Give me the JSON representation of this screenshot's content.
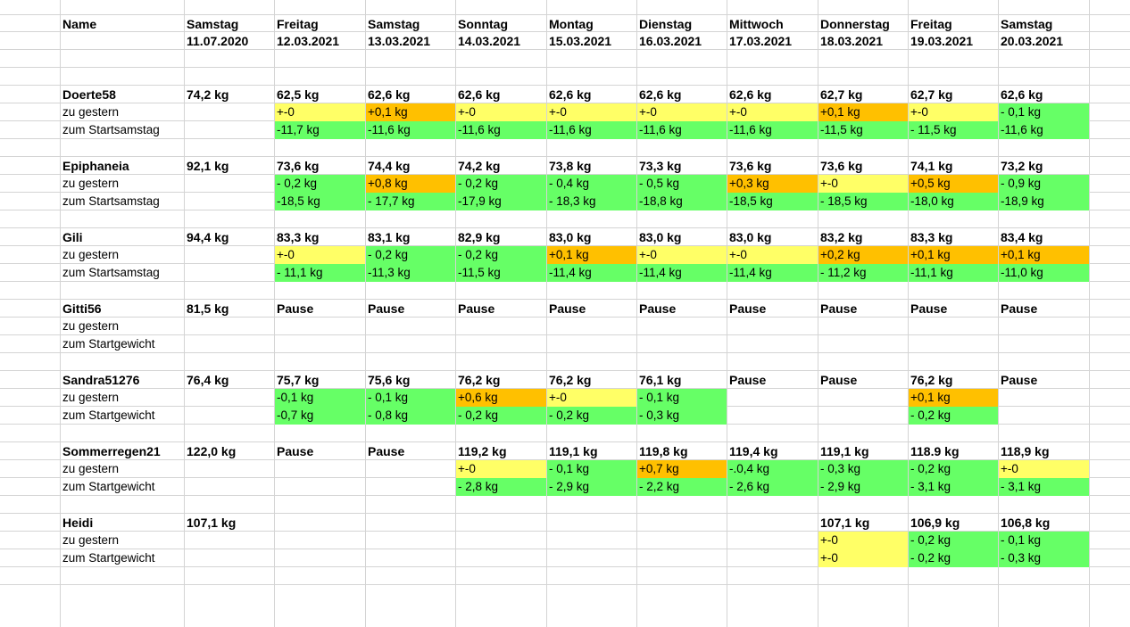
{
  "header": {
    "name_label": "Name",
    "days": [
      {
        "weekday": "Samstag",
        "date": "11.07.2020"
      },
      {
        "weekday": "Freitag",
        "date": "12.03.2021"
      },
      {
        "weekday": "Samstag",
        "date": "13.03.2021"
      },
      {
        "weekday": "Sonntag",
        "date": "14.03.2021"
      },
      {
        "weekday": "Montag",
        "date": "15.03.2021"
      },
      {
        "weekday": "Dienstag",
        "date": "16.03.2021"
      },
      {
        "weekday": "Mittwoch",
        "date": "17.03.2021"
      },
      {
        "weekday": "Donnerstag",
        "date": "18.03.2021"
      },
      {
        "weekday": "Freitag",
        "date": "19.03.2021"
      },
      {
        "weekday": "Samstag",
        "date": "20.03.2021"
      }
    ]
  },
  "colors": {
    "yellow": "#ffff66",
    "orange": "#ffc000",
    "green": "#66ff66"
  },
  "people": [
    {
      "name": "Doerte58",
      "weights": [
        "74,2 kg",
        "62,5 kg",
        "62,6 kg",
        "62,6 kg",
        "62,6 kg",
        "62,6 kg",
        "62,6 kg",
        "62,7 kg",
        "62,7 kg",
        "62,6 kg"
      ],
      "diff_label": "zu gestern",
      "diff": [
        {
          "text": "",
          "color": ""
        },
        {
          "text": "+-0",
          "color": "yellow"
        },
        {
          "text": "+0,1 kg",
          "color": "orange"
        },
        {
          "text": "+-0",
          "color": "yellow"
        },
        {
          "text": "+-0",
          "color": "yellow"
        },
        {
          "text": "+-0",
          "color": "yellow"
        },
        {
          "text": "+-0",
          "color": "yellow"
        },
        {
          "text": "+0,1 kg",
          "color": "orange"
        },
        {
          "text": "+-0",
          "color": "yellow"
        },
        {
          "text": "- 0,1 kg",
          "color": "green"
        }
      ],
      "start_label": "zum Startsamstag",
      "start": [
        {
          "text": "",
          "color": ""
        },
        {
          "text": "-11,7 kg",
          "color": "green"
        },
        {
          "text": "-11,6 kg",
          "color": "green"
        },
        {
          "text": "-11,6 kg",
          "color": "green"
        },
        {
          "text": "-11,6 kg",
          "color": "green"
        },
        {
          "text": "-11,6 kg",
          "color": "green"
        },
        {
          "text": "-11,6 kg",
          "color": "green"
        },
        {
          "text": "-11,5 kg",
          "color": "green"
        },
        {
          "text": "- 11,5 kg",
          "color": "green"
        },
        {
          "text": "-11,6 kg",
          "color": "green"
        }
      ]
    },
    {
      "name": "Epiphaneia",
      "weights": [
        "92,1 kg",
        "73,6 kg",
        "74,4 kg",
        "74,2 kg",
        "73,8 kg",
        "73,3 kg",
        "73,6 kg",
        "73,6 kg",
        "74,1 kg",
        "73,2 kg"
      ],
      "diff_label": "zu gestern",
      "diff": [
        {
          "text": "",
          "color": ""
        },
        {
          "text": "- 0,2 kg",
          "color": "green"
        },
        {
          "text": "+0,8 kg",
          "color": "orange"
        },
        {
          "text": "- 0,2 kg",
          "color": "green"
        },
        {
          "text": "- 0,4 kg",
          "color": "green"
        },
        {
          "text": "- 0,5 kg",
          "color": "green"
        },
        {
          "text": "+0,3 kg",
          "color": "orange"
        },
        {
          "text": "+-0",
          "color": "yellow"
        },
        {
          "text": "+0,5 kg",
          "color": "orange"
        },
        {
          "text": "- 0,9 kg",
          "color": "green"
        }
      ],
      "start_label": "zum Startsamstag",
      "start": [
        {
          "text": "",
          "color": ""
        },
        {
          "text": "-18,5 kg",
          "color": "green"
        },
        {
          "text": "- 17,7 kg",
          "color": "green"
        },
        {
          "text": "-17,9 kg",
          "color": "green"
        },
        {
          "text": "- 18,3 kg",
          "color": "green"
        },
        {
          "text": "-18,8 kg",
          "color": "green"
        },
        {
          "text": "-18,5 kg",
          "color": "green"
        },
        {
          "text": "- 18,5 kg",
          "color": "green"
        },
        {
          "text": "-18,0 kg",
          "color": "green"
        },
        {
          "text": "-18,9 kg",
          "color": "green"
        }
      ]
    },
    {
      "name": "Gili",
      "weights": [
        "94,4 kg",
        "83,3 kg",
        "83,1 kg",
        "82,9 kg",
        "83,0 kg",
        "83,0 kg",
        "83,0 kg",
        "83,2 kg",
        "83,3 kg",
        "83,4 kg"
      ],
      "diff_label": "zu gestern",
      "diff": [
        {
          "text": "",
          "color": ""
        },
        {
          "text": "+-0",
          "color": "yellow"
        },
        {
          "text": "- 0,2 kg",
          "color": "green"
        },
        {
          "text": "- 0,2 kg",
          "color": "green"
        },
        {
          "text": "+0,1 kg",
          "color": "orange"
        },
        {
          "text": "+-0",
          "color": "yellow"
        },
        {
          "text": "+-0",
          "color": "yellow"
        },
        {
          "text": "+0,2 kg",
          "color": "orange"
        },
        {
          "text": "+0,1 kg",
          "color": "orange"
        },
        {
          "text": "+0,1 kg",
          "color": "orange"
        }
      ],
      "start_label": "zum Startsamstag",
      "start": [
        {
          "text": "",
          "color": ""
        },
        {
          "text": "- 11,1 kg",
          "color": "green"
        },
        {
          "text": "-11,3 kg",
          "color": "green"
        },
        {
          "text": "-11,5 kg",
          "color": "green"
        },
        {
          "text": "-11,4 kg",
          "color": "green"
        },
        {
          "text": "-11,4 kg",
          "color": "green"
        },
        {
          "text": "-11,4 kg",
          "color": "green"
        },
        {
          "text": "- 11,2 kg",
          "color": "green"
        },
        {
          "text": "-11,1 kg",
          "color": "green"
        },
        {
          "text": "-11,0 kg",
          "color": "green"
        }
      ]
    },
    {
      "name": "Gitti56",
      "weights": [
        "81,5 kg",
        "Pause",
        "Pause",
        "Pause",
        "Pause",
        "Pause",
        "Pause",
        "Pause",
        "Pause",
        "Pause"
      ],
      "diff_label": "zu gestern",
      "diff": [
        {
          "text": "",
          "color": ""
        },
        {
          "text": "",
          "color": ""
        },
        {
          "text": "",
          "color": ""
        },
        {
          "text": "",
          "color": ""
        },
        {
          "text": "",
          "color": ""
        },
        {
          "text": "",
          "color": ""
        },
        {
          "text": "",
          "color": ""
        },
        {
          "text": "",
          "color": ""
        },
        {
          "text": "",
          "color": ""
        },
        {
          "text": "",
          "color": ""
        }
      ],
      "start_label": "zum Startgewicht",
      "start": [
        {
          "text": "",
          "color": ""
        },
        {
          "text": "",
          "color": ""
        },
        {
          "text": "",
          "color": ""
        },
        {
          "text": "",
          "color": ""
        },
        {
          "text": "",
          "color": ""
        },
        {
          "text": "",
          "color": ""
        },
        {
          "text": "",
          "color": ""
        },
        {
          "text": "",
          "color": ""
        },
        {
          "text": "",
          "color": ""
        },
        {
          "text": "",
          "color": ""
        }
      ]
    },
    {
      "name": "Sandra51276",
      "weights": [
        "76,4 kg",
        "75,7 kg",
        "75,6 kg",
        "76,2 kg",
        "76,2 kg",
        "76,1 kg",
        "Pause",
        "Pause",
        "76,2 kg",
        "Pause"
      ],
      "diff_label": "zu gestern",
      "diff": [
        {
          "text": "",
          "color": ""
        },
        {
          "text": "-0,1 kg",
          "color": "green"
        },
        {
          "text": "- 0,1 kg",
          "color": "green"
        },
        {
          "text": "+0,6 kg",
          "color": "orange"
        },
        {
          "text": "+-0",
          "color": "yellow"
        },
        {
          "text": "- 0,1 kg",
          "color": "green"
        },
        {
          "text": "",
          "color": ""
        },
        {
          "text": "",
          "color": ""
        },
        {
          "text": "+0,1 kg",
          "color": "orange"
        },
        {
          "text": "",
          "color": ""
        }
      ],
      "start_label": "zum Startgewicht",
      "start": [
        {
          "text": "",
          "color": ""
        },
        {
          "text": "-0,7 kg",
          "color": "green"
        },
        {
          "text": "- 0,8 kg",
          "color": "green"
        },
        {
          "text": "- 0,2 kg",
          "color": "green"
        },
        {
          "text": "- 0,2 kg",
          "color": "green"
        },
        {
          "text": "- 0,3 kg",
          "color": "green"
        },
        {
          "text": "",
          "color": ""
        },
        {
          "text": "",
          "color": ""
        },
        {
          "text": "- 0,2 kg",
          "color": "green"
        },
        {
          "text": "",
          "color": ""
        }
      ]
    },
    {
      "name": "Sommerregen21",
      "weights": [
        "122,0 kg",
        "Pause",
        "Pause",
        "119,2 kg",
        "119,1 kg",
        "119,8 kg",
        "119,4 kg",
        "119,1 kg",
        "118.9 kg",
        "118,9 kg"
      ],
      "diff_label": "zu gestern",
      "diff": [
        {
          "text": "",
          "color": ""
        },
        {
          "text": "",
          "color": ""
        },
        {
          "text": "",
          "color": ""
        },
        {
          "text": "+-0",
          "color": "yellow"
        },
        {
          "text": "- 0,1 kg",
          "color": "green"
        },
        {
          "text": "+0,7 kg",
          "color": "orange"
        },
        {
          "text": "-.0,4 kg",
          "color": "green"
        },
        {
          "text": "- 0,3 kg",
          "color": "green"
        },
        {
          "text": "- 0,2 kg",
          "color": "green"
        },
        {
          "text": "+-0",
          "color": "yellow"
        }
      ],
      "start_label": "zum Startgewicht",
      "start": [
        {
          "text": "",
          "color": ""
        },
        {
          "text": "",
          "color": ""
        },
        {
          "text": "",
          "color": ""
        },
        {
          "text": "- 2,8 kg",
          "color": "green"
        },
        {
          "text": "- 2,9 kg",
          "color": "green"
        },
        {
          "text": "- 2,2 kg",
          "color": "green"
        },
        {
          "text": "- 2,6 kg",
          "color": "green"
        },
        {
          "text": "- 2,9 kg",
          "color": "green"
        },
        {
          "text": "- 3,1 kg",
          "color": "green"
        },
        {
          "text": "- 3,1 kg",
          "color": "green"
        }
      ]
    },
    {
      "name": "Heidi",
      "weights": [
        "107,1 kg",
        "",
        "",
        "",
        "",
        "",
        "",
        "107,1 kg",
        "106,9 kg",
        "106,8 kg"
      ],
      "diff_label": "zu gestern",
      "diff": [
        {
          "text": "",
          "color": ""
        },
        {
          "text": "",
          "color": ""
        },
        {
          "text": "",
          "color": ""
        },
        {
          "text": "",
          "color": ""
        },
        {
          "text": "",
          "color": ""
        },
        {
          "text": "",
          "color": ""
        },
        {
          "text": "",
          "color": ""
        },
        {
          "text": "+-0",
          "color": "yellow"
        },
        {
          "text": "- 0,2 kg",
          "color": "green"
        },
        {
          "text": "- 0,1 kg",
          "color": "green"
        }
      ],
      "start_label": "zum Startgewicht",
      "start": [
        {
          "text": "",
          "color": ""
        },
        {
          "text": "",
          "color": ""
        },
        {
          "text": "",
          "color": ""
        },
        {
          "text": "",
          "color": ""
        },
        {
          "text": "",
          "color": ""
        },
        {
          "text": "",
          "color": ""
        },
        {
          "text": "",
          "color": ""
        },
        {
          "text": "+-0",
          "color": "yellow"
        },
        {
          "text": "- 0,2 kg",
          "color": "green"
        },
        {
          "text": "- 0,3 kg",
          "color": "green"
        }
      ]
    }
  ]
}
